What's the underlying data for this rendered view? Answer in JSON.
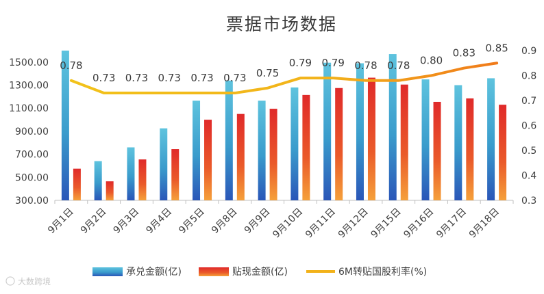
{
  "chart_data": {
    "type": "bar",
    "title": "票据市场数据",
    "categories": [
      "9月1日",
      "9月2日",
      "9月3日",
      "9月4日",
      "9月5日",
      "9月8日",
      "9月9日",
      "9月10日",
      "9月11日",
      "9月12日",
      "9月15日",
      "9月16日",
      "9月17日",
      "9月18日"
    ],
    "series": [
      {
        "name": "承兑金额(亿)",
        "type": "bar",
        "axis": "left",
        "color": "#3ba3c8",
        "values": [
          1600,
          640,
          760,
          925,
          1165,
          1340,
          1165,
          1280,
          1495,
          1490,
          1570,
          1350,
          1300,
          1360
        ]
      },
      {
        "name": "贴现金额(亿)",
        "type": "bar",
        "axis": "left",
        "color": "#e8452b",
        "values": [
          575,
          465,
          655,
          745,
          1000,
          1050,
          1095,
          1215,
          1275,
          1365,
          1305,
          1155,
          1185,
          1130
        ]
      },
      {
        "name": "6M转贴国股利率(%)",
        "type": "line",
        "axis": "right",
        "color": "#f0b51a",
        "values": [
          0.78,
          0.73,
          0.73,
          0.73,
          0.73,
          0.73,
          0.75,
          0.79,
          0.79,
          0.78,
          0.78,
          0.8,
          0.83,
          0.85
        ],
        "labels": [
          "0.78",
          "0.73",
          "0.73",
          "0.73",
          "0.73",
          "0.73",
          "0.75",
          "0.79",
          "0.79",
          "0.78",
          "0.78",
          "0.80",
          "0.83",
          "0.85"
        ]
      }
    ],
    "y_left": {
      "min": 300,
      "max": 1600,
      "ticks": [
        300,
        500,
        700,
        900,
        1100,
        1300,
        1500
      ],
      "tick_labels": [
        "300.00",
        "500.00",
        "700.00",
        "900.00",
        "1100.00",
        "1300.00",
        "1500.00"
      ]
    },
    "y_right": {
      "min": 0.3,
      "max": 0.9,
      "ticks": [
        0.3,
        0.4,
        0.5,
        0.6,
        0.7,
        0.8,
        0.9
      ],
      "tick_labels": [
        "0.3",
        "0.4",
        "0.5",
        "0.6",
        "0.7",
        "0.8",
        "0.9"
      ]
    },
    "legend": [
      "承兑金额(亿)",
      "贴现金额(亿)",
      "6M转贴国股利率(%)"
    ],
    "legend_position": "bottom",
    "grid": false
  },
  "watermark": "大数跨境",
  "colors": {
    "line_end": "#f07a1a"
  }
}
